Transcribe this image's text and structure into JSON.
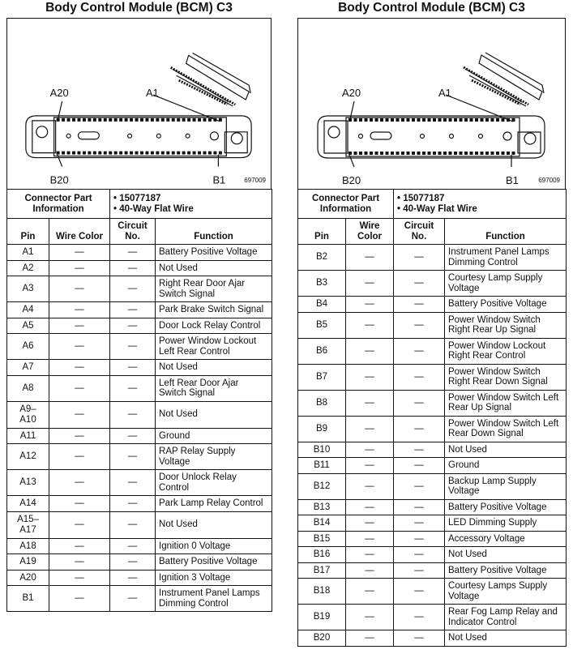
{
  "left": {
    "title": "Body Control Module (BCM) C3",
    "labels": {
      "a20": "A20",
      "a1": "A1",
      "b20": "B20",
      "b1": "B1"
    },
    "figure_code": "697009",
    "connector_info_label": "Connector Part Information",
    "part_number": "• 15077187",
    "part_desc": "• 40-Way Flat Wire",
    "headers": {
      "pin": "Pin",
      "wire": "Wire Color",
      "circuit": "Circuit No.",
      "function": "Function"
    },
    "rows": [
      {
        "pin": "A1",
        "wire": "—",
        "circuit": "—",
        "function": "Battery Positive Voltage"
      },
      {
        "pin": "A2",
        "wire": "—",
        "circuit": "—",
        "function": "Not Used"
      },
      {
        "pin": "A3",
        "wire": "—",
        "circuit": "—",
        "function": "Right Rear Door Ajar Switch Signal"
      },
      {
        "pin": "A4",
        "wire": "—",
        "circuit": "—",
        "function": "Park Brake Switch Signal"
      },
      {
        "pin": "A5",
        "wire": "—",
        "circuit": "—",
        "function": "Door Lock Relay Control"
      },
      {
        "pin": "A6",
        "wire": "—",
        "circuit": "—",
        "function": "Power Window Lockout Left Rear Control"
      },
      {
        "pin": "A7",
        "wire": "—",
        "circuit": "—",
        "function": "Not Used"
      },
      {
        "pin": "A8",
        "wire": "—",
        "circuit": "—",
        "function": "Left Rear Door Ajar Switch Signal"
      },
      {
        "pin": "A9–A10",
        "wire": "—",
        "circuit": "—",
        "function": "Not Used"
      },
      {
        "pin": "A11",
        "wire": "—",
        "circuit": "—",
        "function": "Ground"
      },
      {
        "pin": "A12",
        "wire": "—",
        "circuit": "—",
        "function": "RAP Relay Supply Voltage"
      },
      {
        "pin": "A13",
        "wire": "—",
        "circuit": "—",
        "function": "Door Unlock Relay Control"
      },
      {
        "pin": "A14",
        "wire": "—",
        "circuit": "—",
        "function": "Park Lamp Relay Control"
      },
      {
        "pin": "A15–A17",
        "wire": "—",
        "circuit": "—",
        "function": "Not Used"
      },
      {
        "pin": "A18",
        "wire": "—",
        "circuit": "—",
        "function": "Ignition 0 Voltage"
      },
      {
        "pin": "A19",
        "wire": "—",
        "circuit": "—",
        "function": "Battery Positive Voltage"
      },
      {
        "pin": "A20",
        "wire": "—",
        "circuit": "—",
        "function": "Ignition 3 Voltage"
      },
      {
        "pin": "B1",
        "wire": "—",
        "circuit": "—",
        "function": "Instrument Panel Lamps Dimming Control"
      }
    ]
  },
  "right": {
    "title": "Body Control Module (BCM) C3",
    "labels": {
      "a20": "A20",
      "a1": "A1",
      "b20": "B20",
      "b1": "B1"
    },
    "figure_code": "697009",
    "connector_info_label": "Connector Part Information",
    "part_number": "• 15077187",
    "part_desc": "• 40-Way Flat Wire",
    "headers": {
      "pin": "Pin",
      "wire": "Wire Color",
      "circuit": "Circuit No.",
      "function": "Function"
    },
    "rows": [
      {
        "pin": "B2",
        "wire": "—",
        "circuit": "—",
        "function": "Instrument Panel Lamps Dimming Control"
      },
      {
        "pin": "B3",
        "wire": "—",
        "circuit": "—",
        "function": "Courtesy Lamp Supply Voltage"
      },
      {
        "pin": "B4",
        "wire": "—",
        "circuit": "—",
        "function": "Battery Positive Voltage"
      },
      {
        "pin": "B5",
        "wire": "—",
        "circuit": "—",
        "function": "Power Window Switch Right Rear Up Signal"
      },
      {
        "pin": "B6",
        "wire": "—",
        "circuit": "—",
        "function": "Power Window Lockout Right Rear Control"
      },
      {
        "pin": "B7",
        "wire": "—",
        "circuit": "—",
        "function": "Power Window Switch Right Rear Down Signal"
      },
      {
        "pin": "B8",
        "wire": "—",
        "circuit": "—",
        "function": "Power Window Switch Left Rear Up Signal"
      },
      {
        "pin": "B9",
        "wire": "—",
        "circuit": "—",
        "function": "Power Window Switch Left Rear Down Signal"
      },
      {
        "pin": "B10",
        "wire": "—",
        "circuit": "—",
        "function": "Not Used"
      },
      {
        "pin": "B11",
        "wire": "—",
        "circuit": "—",
        "function": "Ground"
      },
      {
        "pin": "B12",
        "wire": "—",
        "circuit": "—",
        "function": "Backup Lamp Supply Voltage"
      },
      {
        "pin": "B13",
        "wire": "—",
        "circuit": "—",
        "function": "Battery Positive Voltage"
      },
      {
        "pin": "B14",
        "wire": "—",
        "circuit": "—",
        "function": "LED Dimming Supply"
      },
      {
        "pin": "B15",
        "wire": "—",
        "circuit": "—",
        "function": "Accessory Voltage"
      },
      {
        "pin": "B16",
        "wire": "—",
        "circuit": "—",
        "function": "Not Used"
      },
      {
        "pin": "B17",
        "wire": "—",
        "circuit": "—",
        "function": "Battery Positive Voltage"
      },
      {
        "pin": "B18",
        "wire": "—",
        "circuit": "—",
        "function": "Courtesy Lamps Supply Voltage"
      },
      {
        "pin": "B19",
        "wire": "—",
        "circuit": "—",
        "function": "Rear Fog Lamp Relay and Indicator Control"
      },
      {
        "pin": "B20",
        "wire": "—",
        "circuit": "—",
        "function": "Not Used"
      }
    ]
  }
}
